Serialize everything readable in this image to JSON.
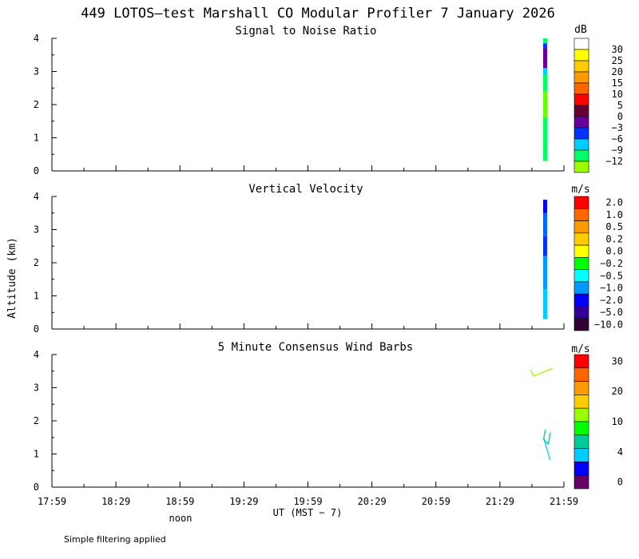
{
  "title": "449 LOTOS—test Marshall CO Modular Profiler  7 January 2026",
  "y_axis_label": "Altitude (km)",
  "x_axis_label": "UT  (MST − 7)",
  "noon_label": "noon",
  "footnote": "Simple filtering applied",
  "x_ticks": [
    "17:59",
    "18:29",
    "18:59",
    "19:29",
    "19:59",
    "20:29",
    "20:59",
    "21:29",
    "21:59"
  ],
  "chart_data": [
    {
      "type": "heatmap",
      "title": "Signal to Noise Ratio",
      "x_range": [
        "17:59",
        "21:59"
      ],
      "y_range": [
        0,
        4
      ],
      "y_ticks": [
        "0",
        "1",
        "2",
        "3",
        "4"
      ],
      "colorbar": {
        "unit": "dB",
        "labels": [
          "30",
          "25",
          "20",
          "15",
          "10",
          "5",
          "0",
          "−3",
          "−6",
          "−9",
          "−12"
        ],
        "colors": [
          "#ffffff",
          "#ffff00",
          "#ffcc00",
          "#ff9900",
          "#ff6600",
          "#ff0000",
          "#660033",
          "#660099",
          "#0033ff",
          "#00ccff",
          "#00ff66",
          "#99ff00"
        ]
      },
      "columns": [
        {
          "time": "21:50",
          "segments": [
            {
              "y0": 0.3,
              "y1": 1.0,
              "color": "#00ff66"
            },
            {
              "y0": 1.0,
              "y1": 1.6,
              "color": "#00ff66"
            },
            {
              "y0": 1.6,
              "y1": 2.4,
              "color": "#66ff00"
            },
            {
              "y0": 2.4,
              "y1": 2.9,
              "color": "#00ff66"
            },
            {
              "y0": 2.9,
              "y1": 3.1,
              "color": "#00ccff"
            },
            {
              "y0": 3.1,
              "y1": 3.7,
              "color": "#660099"
            },
            {
              "y0": 3.7,
              "y1": 3.85,
              "color": "#0033ff"
            },
            {
              "y0": 3.85,
              "y1": 4.0,
              "color": "#00ff66"
            }
          ]
        }
      ]
    },
    {
      "type": "heatmap",
      "title": "Vertical Velocity",
      "x_range": [
        "17:59",
        "21:59"
      ],
      "y_range": [
        0,
        4
      ],
      "y_ticks": [
        "0",
        "1",
        "2",
        "3",
        "4"
      ],
      "colorbar": {
        "unit": "m/s",
        "labels": [
          "2.0",
          "1.0",
          "0.5",
          "0.2",
          "0.0",
          "−0.2",
          "−0.5",
          "−1.0",
          "−2.0",
          "−5.0",
          "−10.0"
        ],
        "colors": [
          "#ff0000",
          "#ff6600",
          "#ff9900",
          "#ffcc00",
          "#ffff00",
          "#00ff00",
          "#00ffff",
          "#0099ff",
          "#0000ff",
          "#330099",
          "#330033"
        ]
      },
      "columns": [
        {
          "time": "21:50",
          "segments": [
            {
              "y0": 0.3,
              "y1": 1.2,
              "color": "#00ccff"
            },
            {
              "y0": 1.2,
              "y1": 2.2,
              "color": "#0099ff"
            },
            {
              "y0": 2.2,
              "y1": 2.8,
              "color": "#0033ff"
            },
            {
              "y0": 2.8,
              "y1": 3.5,
              "color": "#0066ff"
            },
            {
              "y0": 3.5,
              "y1": 3.9,
              "color": "#0000ff"
            }
          ]
        }
      ]
    },
    {
      "type": "scatter",
      "title": "5 Minute Consensus Wind Barbs",
      "x_range": [
        "17:59",
        "21:59"
      ],
      "y_range": [
        0,
        4
      ],
      "y_ticks": [
        "0",
        "1",
        "2",
        "3",
        "4"
      ],
      "colorbar": {
        "unit": "m/s",
        "labels": [
          "30",
          "20",
          "10",
          "4",
          "0"
        ],
        "colors": [
          "#ff0000",
          "#ff6600",
          "#ff9900",
          "#ffcc00",
          "#99ff00",
          "#00ff00",
          "#00cc99",
          "#00ccff",
          "#0000ff",
          "#660066"
        ]
      },
      "barbs": [
        {
          "time": "21:47",
          "altitude": 3.35,
          "color": "#99ff00",
          "shape": "long-v"
        },
        {
          "time": "21:51",
          "altitude": 1.35,
          "color": "#00cc99",
          "shape": "wedge"
        },
        {
          "time": "21:51",
          "altitude": 1.2,
          "color": "#00ccff",
          "shape": "line"
        }
      ]
    }
  ]
}
